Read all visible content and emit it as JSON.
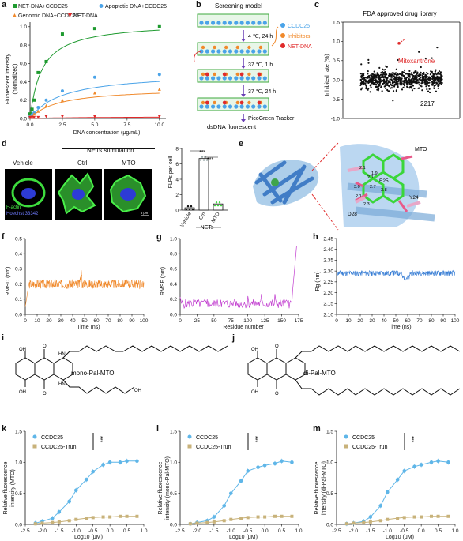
{
  "panel_labels": {
    "a": "a",
    "b": "b",
    "c": "c",
    "d": "d",
    "e": "e",
    "f": "f",
    "g": "g",
    "h": "h",
    "i": "i",
    "j": "j",
    "k": "k",
    "l": "l",
    "m": "m"
  },
  "colors": {
    "green": "#1e9a2f",
    "blue": "#4aa3e8",
    "orange": "#f0892b",
    "red": "#e02a2a",
    "magenta": "#c13ccf",
    "chartBlue": "#3a7fd5",
    "teal": "#5fb6e8",
    "khaki": "#c8b27a",
    "purple": "#6a3fb5"
  },
  "a": {
    "legend": [
      "NET-DNA+CCDC25",
      "Apoptotic DNA+CCDC25",
      "Genomic DNA+CCDC25",
      "NET-DNA"
    ],
    "ylabel1": "Fluorescent intensity",
    "ylabel2": "(normalized)",
    "xlabel": "DNA concentration (μg/mL)",
    "xticks": [
      "0.0",
      "2.5",
      "5.0",
      "7.5",
      "10.0"
    ],
    "yticks": [
      "0.0",
      "0.2",
      "0.4",
      "0.6",
      "0.8",
      "1.0"
    ]
  },
  "b": {
    "title": "Screening model",
    "step1": "4 ℃, 24 h",
    "step2": "37 ℃, 1 h",
    "step3": "37 ℃, 24 h",
    "step4": "PicoGreen Tracker",
    "bottom": "dsDNA fluorescent",
    "legend": [
      "CCDC25",
      "Inhibitors",
      "NET-DNA"
    ]
  },
  "c": {
    "title": "FDA approved drug library",
    "ylabel": "Inhibited rate (%)",
    "highlight": "Mitoxantrone",
    "count": "2217",
    "yticks": [
      "1.5",
      "1.0",
      "0.5",
      "0.0",
      "-0.5",
      "-1.0"
    ]
  },
  "d": {
    "header": "NETs stimulation",
    "col_vehicle": "Vehicle",
    "col_ctrl": "Ctrl",
    "col_mto": "MTO",
    "stain1": "F-actin",
    "stain2": "Hoechst 33342",
    "scale": "5 μm",
    "bar_ylabel": "FLPs per cell",
    "bar_yticks": [
      "0",
      "2",
      "4",
      "6",
      "8"
    ],
    "bar_groups": [
      "Vehicle",
      "Ctrl",
      "MTO"
    ],
    "bar_group_label": "NETs",
    "sig1": "***",
    "sig2": "***"
  },
  "e": {
    "ligand": "MTO",
    "residues": [
      "E25",
      "Y24",
      "D28"
    ],
    "distances": [
      "2.1",
      "2.1",
      "3.0",
      "2.7",
      "3.8",
      "2.1",
      "2.3",
      "1.9"
    ]
  },
  "f": {
    "ylabel": "RMSD (nm)",
    "xlabel": "Time (ns)",
    "xticks": [
      "0",
      "10",
      "20",
      "30",
      "40",
      "50",
      "60",
      "70",
      "80",
      "90",
      "100"
    ],
    "yticks": [
      "0.0",
      "0.1",
      "0.2",
      "0.3",
      "0.4",
      "0.5"
    ]
  },
  "g": {
    "ylabel": "RMSF (nm)",
    "xlabel": "Residue number",
    "xticks": [
      "0",
      "25",
      "50",
      "75",
      "100",
      "125",
      "150",
      "175"
    ],
    "yticks": [
      "0.0",
      "0.2",
      "0.4",
      "0.6",
      "0.8",
      "1.0"
    ]
  },
  "h": {
    "ylabel": "Rg (nm)",
    "xlabel": "Time (ns)",
    "xticks": [
      "0",
      "10",
      "20",
      "30",
      "40",
      "50",
      "60",
      "70",
      "80",
      "90",
      "100"
    ],
    "yticks": [
      "2.10",
      "2.15",
      "2.20",
      "2.25",
      "2.30",
      "2.35",
      "2.40",
      "2.45"
    ]
  },
  "i": {
    "name": "mono-Pal-MTO"
  },
  "j": {
    "name": "di-Pal-MTO"
  },
  "kml_common": {
    "legend": [
      "CCDC25",
      "CCDC25-Trun"
    ],
    "sig": "***",
    "xlabel": "Log10 (μM)",
    "xticks": [
      "-2.5",
      "-2.0",
      "-1.5",
      "-1.0",
      "-0.5",
      "0.0",
      "0.5",
      "1.0"
    ],
    "yticks": [
      "0.0",
      "0.5",
      "1.0",
      "1.5"
    ]
  },
  "k": {
    "ylabel1": "Relative fluorescence",
    "ylabel2": "intensity (MTO)"
  },
  "l": {
    "ylabel1": "Relative fluorescence",
    "ylabel2": "intensity (mono-Pal-MTO)"
  },
  "m": {
    "ylabel1": "Relative fluorescence",
    "ylabel2": "intensity (di-Pal-MTO)"
  },
  "chart_data": [
    {
      "type": "scatter",
      "panel": "a",
      "xlabel": "DNA concentration (μg/mL)",
      "ylabel": "Fluorescent intensity (normalized)",
      "xlim": [
        0,
        10.5
      ],
      "ylim": [
        0,
        1.05
      ],
      "series": [
        {
          "name": "NET-DNA+CCDC25",
          "x": [
            0,
            0.16,
            0.31,
            0.63,
            1.25,
            2.5,
            5,
            10
          ],
          "y": [
            0.05,
            0.1,
            0.2,
            0.5,
            0.62,
            0.92,
            0.98,
            1.0
          ]
        },
        {
          "name": "Apoptotic DNA+CCDC25",
          "x": [
            0,
            0.16,
            0.31,
            0.63,
            1.25,
            2.5,
            5,
            10
          ],
          "y": [
            0.02,
            0.04,
            0.06,
            0.12,
            0.2,
            0.3,
            0.45,
            0.48
          ]
        },
        {
          "name": "Genomic DNA+CCDC25",
          "x": [
            0,
            0.16,
            0.31,
            0.63,
            1.25,
            2.5,
            5,
            10
          ],
          "y": [
            0.02,
            0.03,
            0.05,
            0.08,
            0.14,
            0.2,
            0.28,
            0.32
          ]
        },
        {
          "name": "NET-DNA",
          "x": [
            0,
            0.16,
            0.31,
            0.63,
            1.25,
            2.5,
            5,
            10
          ],
          "y": [
            0.01,
            0.01,
            0.01,
            0.01,
            0.02,
            0.02,
            0.02,
            0.02
          ]
        }
      ]
    },
    {
      "type": "bar",
      "panel": "d",
      "categories": [
        "Vehicle",
        "Ctrl",
        "MTO"
      ],
      "values": [
        0.3,
        6.7,
        0.8
      ],
      "ylabel": "FLPs per cell",
      "ylim": [
        0,
        8
      ]
    },
    {
      "type": "line",
      "panel": "k",
      "xlabel": "Log10 (μM)",
      "ylim": [
        0,
        1.5
      ],
      "xlim": [
        -2.5,
        1.0
      ],
      "x": [
        -2.2,
        -2.0,
        -1.7,
        -1.5,
        -1.2,
        -1.0,
        -0.7,
        -0.5,
        -0.2,
        0.0,
        0.3,
        0.5,
        0.8
      ],
      "series": [
        {
          "name": "CCDC25",
          "values": [
            0.02,
            0.05,
            0.1,
            0.2,
            0.37,
            0.55,
            0.72,
            0.85,
            0.96,
            1.0,
            1.0,
            1.02,
            1.02
          ]
        },
        {
          "name": "CCDC25-Trun",
          "values": [
            0.01,
            0.02,
            0.03,
            0.04,
            0.06,
            0.08,
            0.1,
            0.11,
            0.12,
            0.12,
            0.13,
            0.13,
            0.13
          ]
        }
      ]
    },
    {
      "type": "line",
      "panel": "l",
      "xlabel": "Log10 (μM)",
      "ylim": [
        0,
        1.5
      ],
      "xlim": [
        -2.5,
        1.0
      ],
      "x": [
        -2.2,
        -2.0,
        -1.7,
        -1.5,
        -1.2,
        -1.0,
        -0.7,
        -0.5,
        -0.2,
        0.0,
        0.3,
        0.5,
        0.8
      ],
      "series": [
        {
          "name": "CCDC25",
          "values": [
            0.01,
            0.03,
            0.06,
            0.12,
            0.3,
            0.5,
            0.7,
            0.86,
            0.92,
            0.95,
            0.98,
            1.02,
            1.0
          ]
        },
        {
          "name": "CCDC25-Trun",
          "values": [
            0.01,
            0.02,
            0.03,
            0.04,
            0.06,
            0.08,
            0.1,
            0.11,
            0.12,
            0.12,
            0.13,
            0.13,
            0.13
          ]
        }
      ]
    },
    {
      "type": "line",
      "panel": "m",
      "xlabel": "Log10 (μM)",
      "ylim": [
        0,
        1.5
      ],
      "xlim": [
        -2.5,
        1.0
      ],
      "x": [
        -2.2,
        -2.0,
        -1.7,
        -1.5,
        -1.2,
        -1.0,
        -0.7,
        -0.5,
        -0.2,
        0.0,
        0.3,
        0.5,
        0.8
      ],
      "series": [
        {
          "name": "CCDC25",
          "values": [
            0.01,
            0.02,
            0.05,
            0.12,
            0.3,
            0.52,
            0.72,
            0.86,
            0.93,
            0.96,
            1.0,
            1.02,
            1.0
          ]
        },
        {
          "name": "CCDC25-Trun",
          "values": [
            0.01,
            0.02,
            0.03,
            0.04,
            0.06,
            0.08,
            0.1,
            0.11,
            0.12,
            0.12,
            0.13,
            0.13,
            0.13
          ]
        }
      ]
    }
  ]
}
